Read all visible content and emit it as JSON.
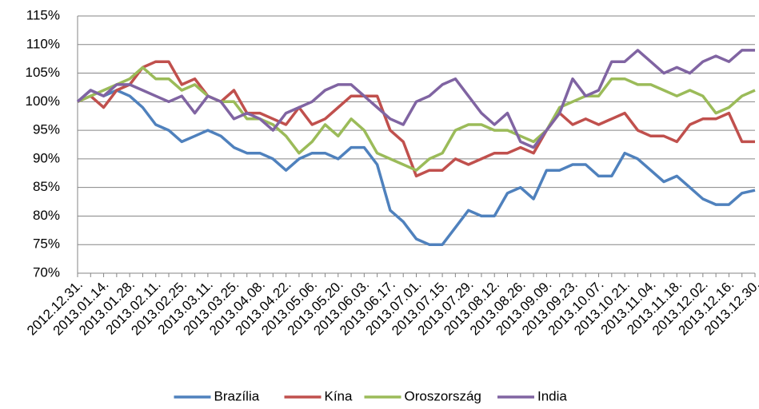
{
  "chart_data": {
    "type": "line",
    "categories": [
      "2012.12.31.",
      null,
      "2013.01.14.",
      null,
      "2013.01.28.",
      null,
      "2013.02.11.",
      null,
      "2013.02.25.",
      null,
      "2013.03.11.",
      null,
      "2013.03.25.",
      null,
      "2013.04.08.",
      null,
      "2013.04.22.",
      null,
      "2013.05.06.",
      null,
      "2013.05.20.",
      null,
      "2013.06.03.",
      null,
      "2013.06.17.",
      null,
      "2013.07.01.",
      null,
      "2013.07.15.",
      null,
      "2013.07.29.",
      null,
      "2013.08.12.",
      null,
      "2013.08.26.",
      null,
      "2013.09.09.",
      null,
      "2013.09.23.",
      null,
      "2013.10.07.",
      null,
      "2013.10.21.",
      null,
      "2013.11.04.",
      null,
      "2013.11.18.",
      null,
      "2013.12.02.",
      null,
      "2013.12.16.",
      null,
      "2013.12.30."
    ],
    "series": [
      {
        "name": "Brazília",
        "color": "#4f81bd",
        "values": [
          100,
          102,
          101,
          102,
          101,
          99,
          96,
          95,
          93,
          94,
          95,
          94,
          92,
          91,
          91,
          90,
          88,
          90,
          91,
          91,
          90,
          92,
          92,
          89,
          81,
          79,
          76,
          75,
          75,
          78,
          81,
          80,
          80,
          84,
          85,
          83,
          88,
          88,
          89,
          89,
          87,
          87,
          91,
          90,
          88,
          86,
          87,
          85,
          83,
          82,
          82,
          84,
          84.5
        ]
      },
      {
        "name": "Kína",
        "color": "#c0504d",
        "values": [
          100,
          101,
          99,
          102,
          103,
          106,
          107,
          107,
          103,
          104,
          101,
          100,
          102,
          98,
          98,
          97,
          96,
          99,
          96,
          97,
          99,
          101,
          101,
          101,
          95,
          93,
          87,
          88,
          88,
          90,
          89,
          90,
          91,
          91,
          92,
          91,
          95,
          98,
          96,
          97,
          96,
          97,
          98,
          95,
          94,
          94,
          93,
          96,
          97,
          97,
          98,
          93,
          93
        ]
      },
      {
        "name": "Oroszország",
        "color": "#9bbb59",
        "values": [
          100,
          101,
          102,
          103,
          104,
          106,
          104,
          104,
          102,
          103,
          101,
          100,
          100,
          97,
          97,
          96,
          94,
          91,
          93,
          96,
          94,
          97,
          95,
          91,
          90,
          89,
          88,
          90,
          91,
          95,
          96,
          96,
          95,
          95,
          94,
          93,
          95,
          99,
          100,
          101,
          101,
          104,
          104,
          103,
          103,
          102,
          101,
          102,
          101,
          98,
          99,
          101,
          102
        ]
      },
      {
        "name": "India",
        "color": "#8064a2",
        "values": [
          100,
          102,
          101,
          103,
          103,
          102,
          101,
          100,
          101,
          98,
          101,
          100,
          97,
          98,
          97,
          95,
          98,
          99,
          100,
          102,
          103,
          103,
          101,
          99,
          97,
          96,
          100,
          101,
          103,
          104,
          101,
          98,
          96,
          98,
          93,
          92,
          95,
          98,
          104,
          101,
          102,
          107,
          107,
          109,
          107,
          105,
          106,
          105,
          107,
          108,
          107,
          109,
          109
        ]
      }
    ],
    "ylim": [
      70,
      115
    ],
    "yticks": [
      {
        "value": 70,
        "label": "70%"
      },
      {
        "value": 75,
        "label": "75%"
      },
      {
        "value": 80,
        "label": "80%"
      },
      {
        "value": 85,
        "label": "85%"
      },
      {
        "value": 90,
        "label": "90%"
      },
      {
        "value": 95,
        "label": "95%"
      },
      {
        "value": 100,
        "label": "100%"
      },
      {
        "value": 105,
        "label": "105%"
      },
      {
        "value": 110,
        "label": "110%"
      },
      {
        "value": 115,
        "label": "115%"
      }
    ],
    "grid": true,
    "legend": "bottom"
  }
}
